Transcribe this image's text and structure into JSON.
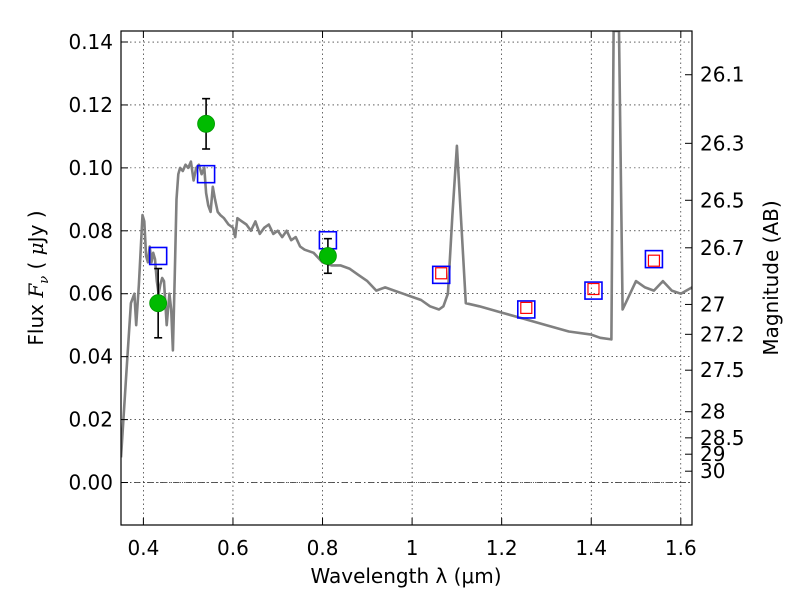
{
  "chart_data": {
    "type": "line",
    "xlabel": "Wavelength  λ (μm)",
    "ylabel": "Flux  F_ν  ( μJy )",
    "ylabel_parts": {
      "pre": "Flux  ",
      "sym": "F",
      "sub": "ν",
      "mid": "  ( ",
      "mu": "μ",
      "post": "Jy )"
    },
    "y2label": "Magnitude (AB)",
    "xlim": [
      0.35,
      1.625
    ],
    "ylim": [
      -0.0135,
      0.1435
    ],
    "grid": true,
    "x_ticks": [
      {
        "value": 0.4,
        "label": "0.4"
      },
      {
        "value": 0.6,
        "label": "0.6"
      },
      {
        "value": 0.8,
        "label": "0.8"
      },
      {
        "value": 1.0,
        "label": "1"
      },
      {
        "value": 1.2,
        "label": "1.2"
      },
      {
        "value": 1.4,
        "label": "1.4"
      },
      {
        "value": 1.6,
        "label": "1.6"
      }
    ],
    "y_ticks": [
      {
        "value": 0.0,
        "label": "0.00"
      },
      {
        "value": 0.02,
        "label": "0.02"
      },
      {
        "value": 0.04,
        "label": "0.04"
      },
      {
        "value": 0.06,
        "label": "0.06"
      },
      {
        "value": 0.08,
        "label": "0.08"
      },
      {
        "value": 0.1,
        "label": "0.10"
      },
      {
        "value": 0.12,
        "label": "0.12"
      },
      {
        "value": 0.14,
        "label": "0.14"
      }
    ],
    "y2_ticks": [
      {
        "label": "26.1",
        "flux": 0.1296
      },
      {
        "label": "26.3",
        "flux": 0.1078
      },
      {
        "label": "26.5",
        "flux": 0.0897
      },
      {
        "label": "26.7",
        "flux": 0.0746
      },
      {
        "label": "27",
        "flux": 0.0566
      },
      {
        "label": "27.2",
        "flux": 0.0471
      },
      {
        "label": "27.5",
        "flux": 0.0357
      },
      {
        "label": "28",
        "flux": 0.0225
      },
      {
        "label": "28.5",
        "flux": 0.0142
      },
      {
        "label": "29",
        "flux": 0.009
      },
      {
        "label": "30",
        "flux": 0.0036
      }
    ],
    "series": [
      {
        "style": "sed-line",
        "color": "#808080",
        "x": [
          0.35,
          0.362,
          0.372,
          0.38,
          0.384,
          0.39,
          0.394,
          0.398,
          0.402,
          0.406,
          0.41,
          0.414,
          0.418,
          0.422,
          0.426,
          0.43,
          0.434,
          0.438,
          0.442,
          0.446,
          0.452,
          0.458,
          0.462,
          0.466,
          0.47,
          0.474,
          0.478,
          0.482,
          0.488,
          0.494,
          0.5,
          0.506,
          0.512,
          0.518,
          0.524,
          0.53,
          0.536,
          0.54,
          0.545,
          0.55,
          0.555,
          0.56,
          0.566,
          0.572,
          0.58,
          0.59,
          0.6,
          0.605,
          0.61,
          0.62,
          0.63,
          0.64,
          0.65,
          0.66,
          0.67,
          0.68,
          0.69,
          0.7,
          0.71,
          0.72,
          0.73,
          0.74,
          0.75,
          0.76,
          0.78,
          0.8,
          0.82,
          0.84,
          0.86,
          0.88,
          0.9,
          0.92,
          0.94,
          0.96,
          0.98,
          1.0,
          1.02,
          1.04,
          1.06,
          1.07,
          1.08,
          1.09,
          1.1,
          1.12,
          1.15,
          1.2,
          1.25,
          1.3,
          1.35,
          1.4,
          1.42,
          1.445,
          1.45,
          1.46,
          1.462,
          1.47,
          1.48,
          1.5,
          1.52,
          1.54,
          1.56,
          1.58,
          1.6,
          1.625
        ],
        "values": [
          0.008,
          0.035,
          0.057,
          0.06,
          0.05,
          0.063,
          0.074,
          0.085,
          0.083,
          0.072,
          0.07,
          0.075,
          0.07,
          0.073,
          0.071,
          0.064,
          0.06,
          0.063,
          0.065,
          0.064,
          0.05,
          0.06,
          0.055,
          0.042,
          0.065,
          0.09,
          0.098,
          0.1,
          0.099,
          0.101,
          0.1,
          0.102,
          0.096,
          0.1,
          0.101,
          0.098,
          0.1,
          0.092,
          0.088,
          0.086,
          0.094,
          0.09,
          0.086,
          0.085,
          0.084,
          0.082,
          0.081,
          0.078,
          0.084,
          0.083,
          0.082,
          0.08,
          0.083,
          0.079,
          0.081,
          0.082,
          0.079,
          0.08,
          0.078,
          0.08,
          0.077,
          0.078,
          0.075,
          0.074,
          0.073,
          0.07,
          0.069,
          0.069,
          0.068,
          0.066,
          0.064,
          0.061,
          0.062,
          0.061,
          0.06,
          0.059,
          0.058,
          0.056,
          0.055,
          0.056,
          0.06,
          0.085,
          0.107,
          0.057,
          0.056,
          0.054,
          0.052,
          0.05,
          0.048,
          0.047,
          0.046,
          0.0455,
          0.1435,
          0.1435,
          0.1435,
          0.055,
          0.058,
          0.064,
          0.062,
          0.061,
          0.064,
          0.061,
          0.06,
          0.062
        ]
      },
      {
        "style": "green-points",
        "color": "#00bb00",
        "x": [
          0.433,
          0.54,
          0.812
        ],
        "values": [
          0.057,
          0.114,
          0.072
        ],
        "errors": [
          0.011,
          0.008,
          0.0055
        ]
      },
      {
        "style": "blue-squares",
        "color": "#0000ff",
        "x": [
          0.433,
          0.54,
          0.812,
          1.065,
          1.255,
          1.405,
          1.54
        ],
        "values": [
          0.072,
          0.098,
          0.077,
          0.066,
          0.055,
          0.061,
          0.071
        ]
      },
      {
        "style": "red-squares",
        "color": "#ff0000",
        "x": [
          1.065,
          1.255,
          1.405,
          1.54
        ],
        "values": [
          0.0665,
          0.0555,
          0.0615,
          0.0705
        ]
      }
    ]
  }
}
